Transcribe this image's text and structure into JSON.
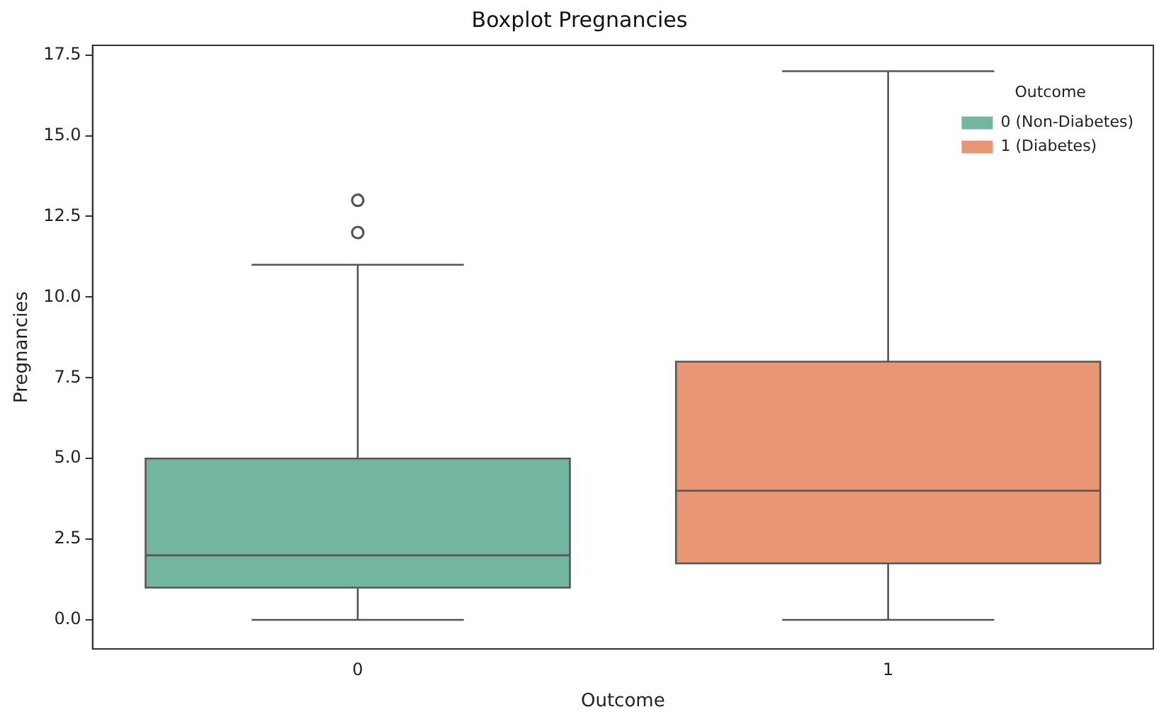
{
  "chart_data": {
    "type": "box",
    "title": "Boxplot Pregnancies",
    "xlabel": "Outcome",
    "ylabel": "Pregnancies",
    "legend_title": "Outcome",
    "legend": "top right",
    "grid": false,
    "categories": [
      "0",
      "1"
    ],
    "ylim": [
      -0.9,
      17.8
    ],
    "yticks": [
      {
        "value": 0,
        "label": "0.0"
      },
      {
        "value": 2.5,
        "label": "2.5"
      },
      {
        "value": 5,
        "label": "5.0"
      },
      {
        "value": 7.5,
        "label": "7.5"
      },
      {
        "value": 10,
        "label": "10.0"
      },
      {
        "value": 12.5,
        "label": "12.5"
      },
      {
        "value": 15,
        "label": "15.0"
      },
      {
        "value": 17.5,
        "label": "17.5"
      }
    ],
    "series": [
      {
        "name": "0 (Non-Diabetes)",
        "color": "#72b6a1",
        "boxes": [
          {
            "low": 0,
            "q1": 1,
            "median": 2,
            "q3": 5,
            "high": 11,
            "outliers": [
              12,
              13
            ]
          },
          null
        ]
      },
      {
        "name": "1 (Diabetes)",
        "color": "#e99675",
        "boxes": [
          null,
          {
            "low": 0,
            "q1": 1.75,
            "median": 4,
            "q3": 8,
            "high": 17
          }
        ]
      }
    ]
  }
}
